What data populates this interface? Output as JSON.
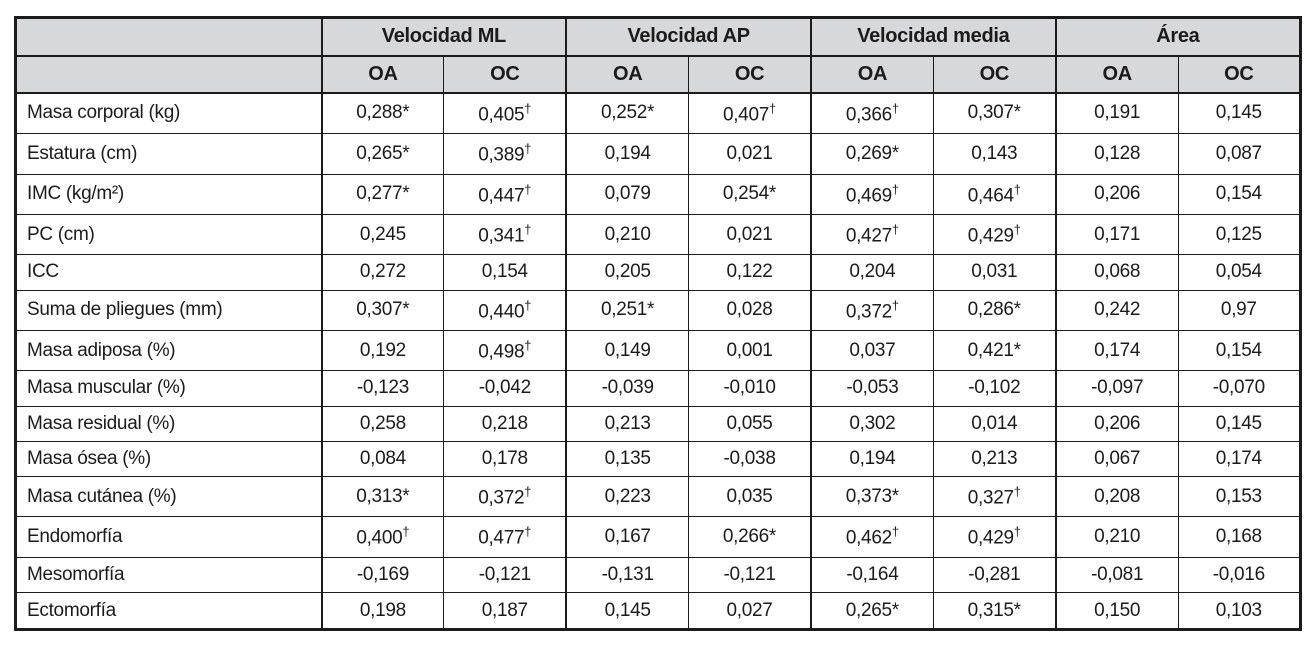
{
  "table": {
    "corner_label": "",
    "groups": [
      {
        "label": "Velocidad ML"
      },
      {
        "label": "Velocidad AP"
      },
      {
        "label": "Velocidad media"
      },
      {
        "label": "Área"
      }
    ],
    "subheaders": [
      "OA",
      "OC",
      "OA",
      "OC",
      "OA",
      "OC",
      "OA",
      "OC"
    ],
    "rows": [
      {
        "label": "Masa corporal (kg)",
        "values": [
          "0,288*",
          "0,405†",
          "0,252*",
          "0,407†",
          "0,366†",
          "0,307*",
          "0,191",
          "0,145"
        ]
      },
      {
        "label": "Estatura (cm)",
        "values": [
          "0,265*",
          "0,389†",
          "0,194",
          "0,021",
          "0,269*",
          "0,143",
          "0,128",
          "0,087"
        ]
      },
      {
        "label": "IMC (kg/m²)",
        "values": [
          "0,277*",
          "0,447†",
          "0,079",
          "0,254*",
          "0,469†",
          "0,464†",
          "0,206",
          "0,154"
        ]
      },
      {
        "label": "PC (cm)",
        "values": [
          "0,245",
          "0,341†",
          "0,210",
          "0,021",
          "0,427†",
          "0,429†",
          "0,171",
          "0,125"
        ]
      },
      {
        "label": "ICC",
        "values": [
          "0,272",
          "0,154",
          "0,205",
          "0,122",
          "0,204",
          "0,031",
          "0,068",
          "0,054"
        ]
      },
      {
        "label": "Suma de pliegues (mm)",
        "values": [
          "0,307*",
          "0,440†",
          "0,251*",
          "0,028",
          "0,372†",
          "0,286*",
          "0,242",
          "0,97"
        ]
      },
      {
        "label": "Masa adiposa (%)",
        "values": [
          "0,192",
          "0,498†",
          "0,149",
          "0,001",
          "0,037",
          "0,421*",
          "0,174",
          "0,154"
        ]
      },
      {
        "label": "Masa muscular (%)",
        "values": [
          "-0,123",
          "-0,042",
          "-0,039",
          "-0,010",
          "-0,053",
          "-0,102",
          "-0,097",
          "-0,070"
        ]
      },
      {
        "label": "Masa residual (%)",
        "values": [
          "0,258",
          "0,218",
          "0,213",
          "0,055",
          "0,302",
          "0,014",
          "0,206",
          "0,145"
        ]
      },
      {
        "label": "Masa ósea (%)",
        "values": [
          "0,084",
          "0,178",
          "0,135",
          "-0,038",
          "0,194",
          "0,213",
          "0,067",
          "0,174"
        ]
      },
      {
        "label": "Masa cutánea (%)",
        "values": [
          "0,313*",
          "0,372†",
          "0,223",
          "0,035",
          "0,373*",
          "0,327†",
          "0,208",
          "0,153"
        ]
      },
      {
        "label": "Endomorfía",
        "values": [
          "0,400†",
          "0,477†",
          "0,167",
          "0,266*",
          "0,462†",
          "0,429†",
          "0,210",
          "0,168"
        ]
      },
      {
        "label": "Mesomorfía",
        "values": [
          "-0,169",
          "-0,121",
          "-0,131",
          "-0,121",
          "-0,164",
          "-0,281",
          "-0,081",
          "-0,016"
        ]
      },
      {
        "label": "Ectomorfía",
        "values": [
          "0,198",
          "0,187",
          "0,145",
          "0,027",
          "0,265*",
          "0,315*",
          "0,150",
          "0,103"
        ]
      }
    ]
  }
}
